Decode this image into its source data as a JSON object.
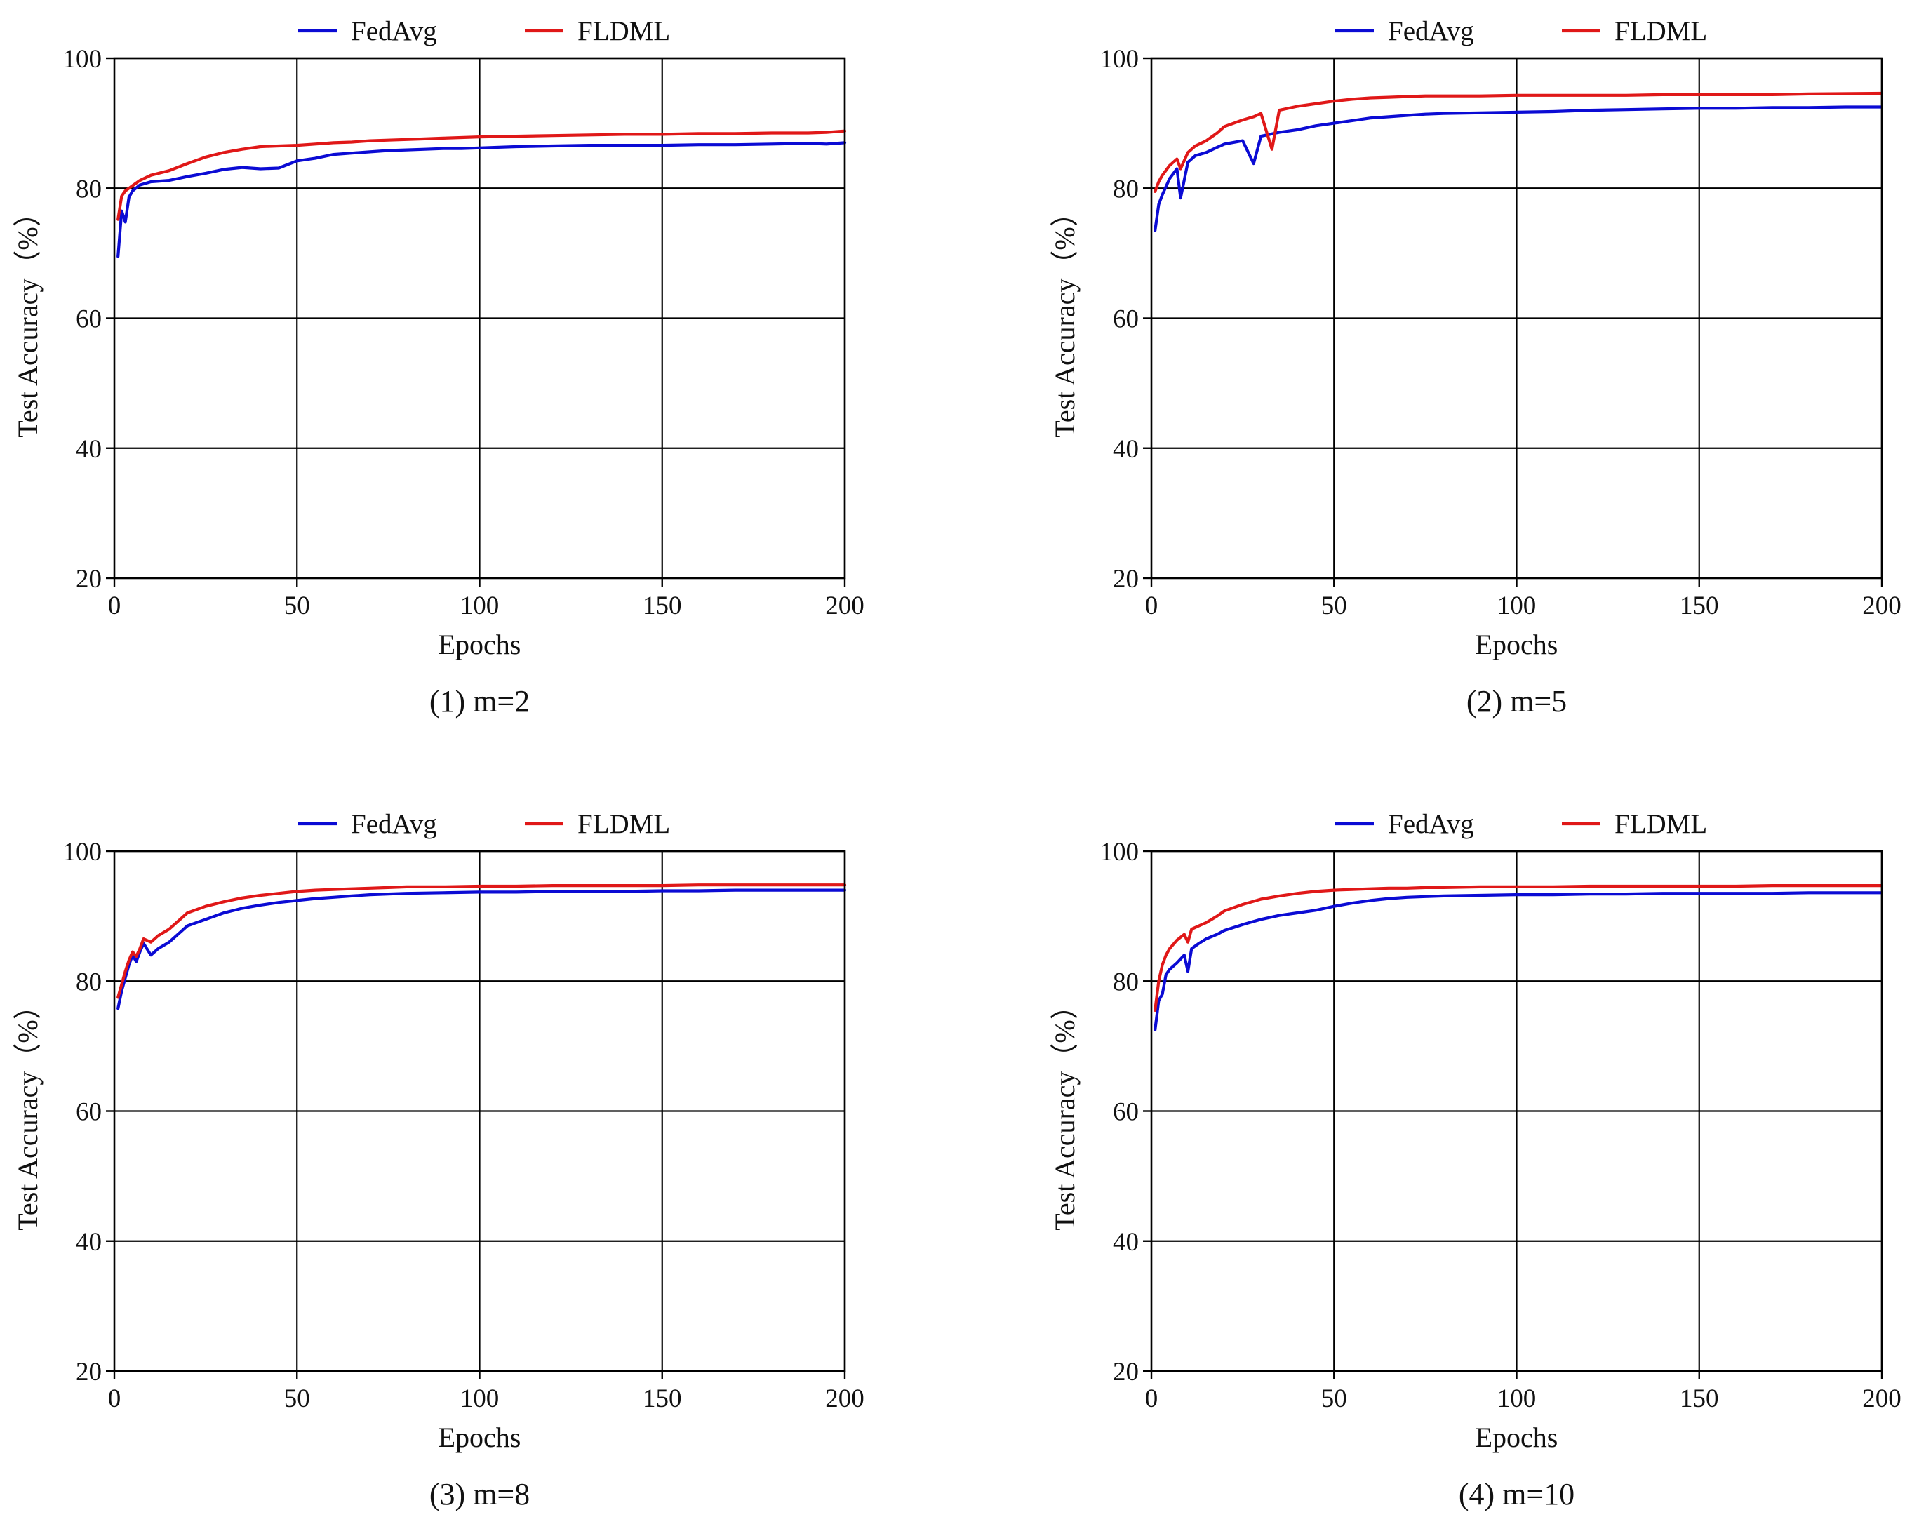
{
  "figure": {
    "colors": {
      "fedavg": "#0b0bd4",
      "fldml": "#e01818"
    }
  },
  "chart_data": [
    {
      "id": "p1",
      "type": "line",
      "caption": "(1) m=2",
      "xlabel": "Epochs",
      "ylabel": "Test Accuracy（%）",
      "xlim": [
        0,
        200
      ],
      "ylim": [
        20,
        100
      ],
      "xticks": [
        0,
        50,
        100,
        150,
        200
      ],
      "yticks": [
        20,
        40,
        60,
        80,
        100
      ],
      "grid": true,
      "legend": "top",
      "series": [
        {
          "name": "FedAvg",
          "color": "#0b0bd4",
          "x": [
            1,
            2,
            3,
            4,
            5,
            7,
            10,
            15,
            20,
            25,
            30,
            35,
            40,
            45,
            50,
            55,
            60,
            65,
            70,
            75,
            80,
            85,
            90,
            95,
            100,
            110,
            120,
            130,
            140,
            150,
            160,
            170,
            180,
            190,
            195,
            200
          ],
          "y": [
            69.5,
            76.5,
            74.8,
            78.6,
            79.6,
            80.5,
            81.0,
            81.2,
            81.8,
            82.3,
            82.9,
            83.2,
            83.0,
            83.1,
            84.2,
            84.6,
            85.2,
            85.4,
            85.6,
            85.8,
            85.9,
            86.0,
            86.1,
            86.1,
            86.2,
            86.4,
            86.5,
            86.6,
            86.6,
            86.6,
            86.7,
            86.7,
            86.8,
            86.9,
            86.8,
            87.0
          ]
        },
        {
          "name": "FLDML",
          "color": "#e01818",
          "x": [
            1,
            2,
            3,
            4,
            5,
            7,
            10,
            15,
            20,
            25,
            30,
            35,
            40,
            45,
            50,
            55,
            60,
            65,
            70,
            75,
            80,
            85,
            90,
            95,
            100,
            110,
            120,
            130,
            140,
            150,
            160,
            170,
            180,
            190,
            195,
            200
          ],
          "y": [
            75.2,
            78.8,
            79.6,
            80.0,
            80.4,
            81.2,
            82.0,
            82.7,
            83.8,
            84.8,
            85.5,
            86.0,
            86.4,
            86.5,
            86.6,
            86.8,
            87.0,
            87.1,
            87.3,
            87.4,
            87.5,
            87.6,
            87.7,
            87.8,
            87.9,
            88.0,
            88.1,
            88.2,
            88.3,
            88.3,
            88.4,
            88.4,
            88.5,
            88.5,
            88.6,
            88.8
          ]
        }
      ]
    },
    {
      "id": "p2",
      "type": "line",
      "caption": "(2) m=5",
      "xlabel": "Epochs",
      "ylabel": "Test Accuracy（%）",
      "xlim": [
        0,
        200
      ],
      "ylim": [
        20,
        100
      ],
      "xticks": [
        0,
        50,
        100,
        150,
        200
      ],
      "yticks": [
        20,
        40,
        60,
        80,
        100
      ],
      "grid": true,
      "legend": "top",
      "series": [
        {
          "name": "FedAvg",
          "color": "#0b0bd4",
          "x": [
            1,
            2,
            3,
            5,
            7,
            8,
            10,
            12,
            15,
            18,
            20,
            25,
            28,
            30,
            35,
            40,
            45,
            50,
            55,
            60,
            65,
            70,
            75,
            80,
            90,
            100,
            110,
            120,
            130,
            140,
            150,
            160,
            170,
            180,
            190,
            200
          ],
          "y": [
            73.5,
            77.5,
            79.0,
            81.5,
            83.0,
            78.5,
            84.0,
            85.0,
            85.5,
            86.3,
            86.8,
            87.3,
            83.8,
            88.0,
            88.6,
            89.0,
            89.6,
            90.0,
            90.4,
            90.8,
            91.0,
            91.2,
            91.4,
            91.5,
            91.6,
            91.7,
            91.8,
            92.0,
            92.1,
            92.2,
            92.3,
            92.3,
            92.4,
            92.4,
            92.5,
            92.5
          ]
        },
        {
          "name": "FLDML",
          "color": "#e01818",
          "x": [
            1,
            2,
            3,
            5,
            7,
            8,
            10,
            12,
            15,
            18,
            20,
            25,
            28,
            30,
            33,
            35,
            40,
            45,
            50,
            55,
            60,
            65,
            70,
            75,
            80,
            90,
            100,
            110,
            120,
            130,
            140,
            150,
            160,
            170,
            180,
            200
          ],
          "y": [
            79.5,
            81.0,
            82.0,
            83.5,
            84.5,
            83.0,
            85.5,
            86.5,
            87.3,
            88.5,
            89.5,
            90.5,
            91.0,
            91.5,
            86.0,
            92.0,
            92.6,
            93.0,
            93.4,
            93.7,
            93.9,
            94.0,
            94.1,
            94.2,
            94.2,
            94.2,
            94.3,
            94.3,
            94.3,
            94.3,
            94.4,
            94.4,
            94.4,
            94.4,
            94.5,
            94.6
          ]
        }
      ]
    },
    {
      "id": "p3",
      "type": "line",
      "caption": "(3) m=8",
      "xlabel": "Epochs",
      "ylabel": "Test Accuracy（%）",
      "xlim": [
        0,
        200
      ],
      "ylim": [
        20,
        100
      ],
      "xticks": [
        0,
        50,
        100,
        150,
        200
      ],
      "yticks": [
        20,
        40,
        60,
        80,
        100
      ],
      "grid": true,
      "legend": "top",
      "series": [
        {
          "name": "FedAvg",
          "color": "#0b0bd4",
          "x": [
            1,
            2,
            3,
            4,
            5,
            6,
            7,
            8,
            10,
            12,
            15,
            18,
            20,
            25,
            30,
            35,
            40,
            45,
            50,
            55,
            60,
            65,
            70,
            75,
            80,
            90,
            100,
            110,
            120,
            130,
            140,
            150,
            160,
            170,
            180,
            200
          ],
          "y": [
            75.8,
            78.5,
            80.5,
            82.5,
            84.0,
            83.0,
            84.5,
            85.8,
            84.0,
            85.0,
            86.0,
            87.5,
            88.5,
            89.5,
            90.5,
            91.2,
            91.7,
            92.1,
            92.4,
            92.7,
            92.9,
            93.1,
            93.3,
            93.4,
            93.5,
            93.6,
            93.7,
            93.7,
            93.8,
            93.8,
            93.8,
            93.9,
            93.9,
            94.0,
            94.0,
            94.0
          ]
        },
        {
          "name": "FLDML",
          "color": "#e01818",
          "x": [
            1,
            2,
            3,
            4,
            5,
            6,
            7,
            8,
            10,
            12,
            15,
            18,
            20,
            25,
            30,
            35,
            40,
            45,
            50,
            55,
            60,
            65,
            70,
            75,
            80,
            90,
            100,
            110,
            120,
            130,
            140,
            150,
            160,
            170,
            180,
            200
          ],
          "y": [
            77.5,
            79.5,
            81.5,
            83.2,
            84.5,
            83.8,
            85.0,
            86.5,
            86.0,
            87.0,
            88.0,
            89.5,
            90.5,
            91.5,
            92.2,
            92.8,
            93.2,
            93.5,
            93.8,
            94.0,
            94.1,
            94.2,
            94.3,
            94.4,
            94.5,
            94.5,
            94.6,
            94.6,
            94.7,
            94.7,
            94.7,
            94.7,
            94.8,
            94.8,
            94.8,
            94.8
          ]
        }
      ]
    },
    {
      "id": "p4",
      "type": "line",
      "caption": "(4) m=10",
      "xlabel": "Epochs",
      "ylabel": "Test Accuracy（%）",
      "xlim": [
        0,
        200
      ],
      "ylim": [
        20,
        100
      ],
      "xticks": [
        0,
        50,
        100,
        150,
        200
      ],
      "yticks": [
        20,
        40,
        60,
        80,
        100
      ],
      "grid": true,
      "legend": "top",
      "series": [
        {
          "name": "FedAvg",
          "color": "#0b0bd4",
          "x": [
            1,
            2,
            3,
            4,
            5,
            7,
            9,
            10,
            11,
            13,
            15,
            18,
            20,
            25,
            30,
            35,
            40,
            45,
            50,
            55,
            60,
            65,
            70,
            75,
            80,
            90,
            100,
            110,
            120,
            130,
            140,
            150,
            160,
            170,
            180,
            200
          ],
          "y": [
            72.5,
            77.0,
            78.0,
            81.0,
            81.8,
            82.8,
            84.0,
            81.5,
            85.0,
            85.8,
            86.5,
            87.2,
            87.8,
            88.7,
            89.5,
            90.1,
            90.5,
            90.9,
            91.5,
            92.0,
            92.4,
            92.7,
            92.9,
            93.0,
            93.1,
            93.2,
            93.3,
            93.3,
            93.4,
            93.4,
            93.5,
            93.5,
            93.5,
            93.5,
            93.6,
            93.6
          ]
        },
        {
          "name": "FLDML",
          "color": "#e01818",
          "x": [
            1,
            2,
            3,
            4,
            5,
            7,
            9,
            10,
            11,
            13,
            15,
            18,
            20,
            25,
            30,
            35,
            40,
            45,
            50,
            55,
            60,
            65,
            70,
            75,
            80,
            90,
            100,
            110,
            120,
            130,
            140,
            150,
            160,
            170,
            180,
            200
          ],
          "y": [
            75.5,
            80.0,
            82.5,
            84.0,
            85.0,
            86.3,
            87.2,
            86.0,
            88.0,
            88.5,
            89.0,
            90.0,
            90.8,
            91.8,
            92.6,
            93.1,
            93.5,
            93.8,
            94.0,
            94.1,
            94.2,
            94.3,
            94.3,
            94.4,
            94.4,
            94.5,
            94.5,
            94.5,
            94.6,
            94.6,
            94.6,
            94.6,
            94.6,
            94.7,
            94.7,
            94.7
          ]
        }
      ]
    }
  ]
}
